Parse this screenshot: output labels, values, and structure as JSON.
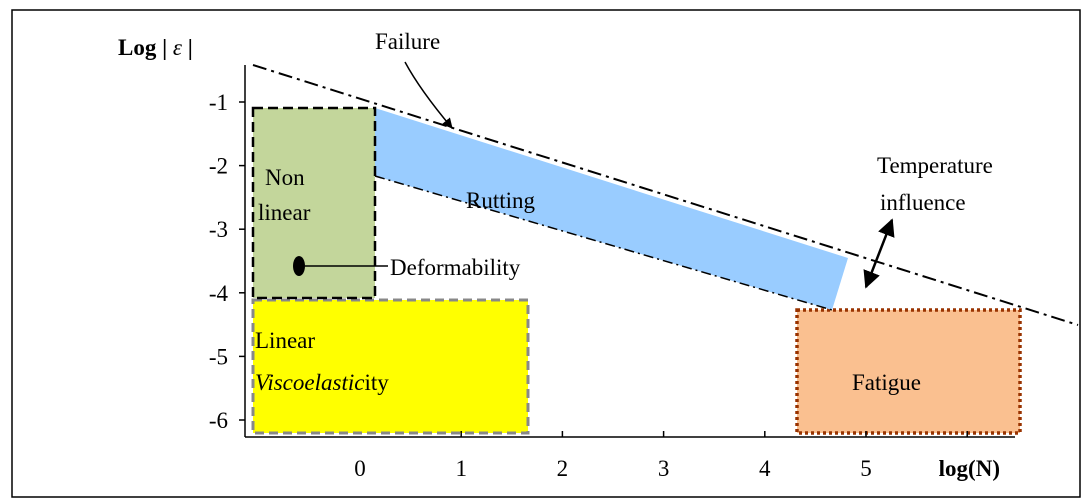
{
  "y_axis": {
    "label_text": "Log | ",
    "label_symbol": "ε",
    "label_end": " |",
    "ticks": [
      -1,
      -2,
      -3,
      -4,
      -5,
      -6
    ]
  },
  "x_axis": {
    "label": "log(N)",
    "ticks": [
      0,
      1,
      2,
      3,
      4,
      5
    ]
  },
  "regions": {
    "failure": "Failure",
    "temperature": [
      "Temperature",
      "influence"
    ],
    "nonlinear": [
      "Non",
      "linear"
    ],
    "rutting": "Rutting",
    "deformability": "Deformability",
    "linear": "Linear",
    "viscoelastic_italic": "Viscoelastic",
    "viscoelastic_end": "ity",
    "fatigue": "Fatigue"
  }
}
